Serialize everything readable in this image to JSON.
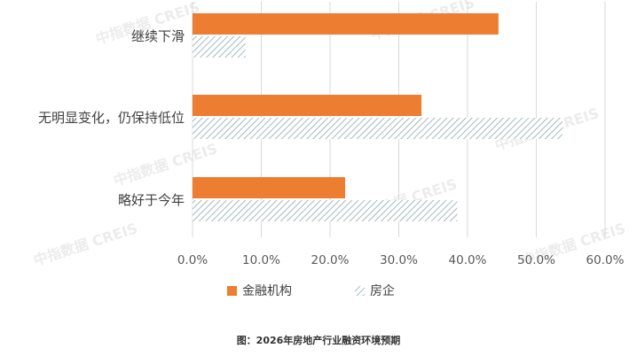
{
  "colors": {
    "background": "#ffffff",
    "gridline": "#d9d9d9",
    "axis_text": "#595959",
    "category_text": "#404040",
    "financial": "#ed7d31",
    "realestate_stripe": "#8aa9b4",
    "realestate_base": "#ffffff",
    "caption": "#333333",
    "watermark": "#c8c8c8"
  },
  "watermark": {
    "text": "中指数据 CREIS"
  },
  "caption": "图：2026年房地产行业融资环境预期",
  "chart_data": {
    "type": "bar",
    "orientation": "horizontal",
    "title": "",
    "xlabel": "",
    "ylabel": "",
    "categories": [
      "继续下滑",
      "无明显变化，仍保持低位",
      "略好于今年"
    ],
    "series": [
      {
        "name": "金融机构",
        "pattern": "solid",
        "values": [
          44.5,
          33.3,
          22.2
        ]
      },
      {
        "name": "房企",
        "pattern": "diagonal-stripe",
        "values": [
          7.7,
          53.8,
          38.5
        ]
      }
    ],
    "xlim": [
      0,
      60
    ],
    "xticks": [
      0,
      10,
      20,
      30,
      40,
      50,
      60
    ],
    "xtick_labels": [
      "0.0%",
      "10.0%",
      "20.0%",
      "30.0%",
      "40.0%",
      "50.0%",
      "60.0%"
    ],
    "grid": true,
    "legend": {
      "position": "bottom",
      "entries": [
        "金融机构",
        "房企"
      ]
    }
  }
}
